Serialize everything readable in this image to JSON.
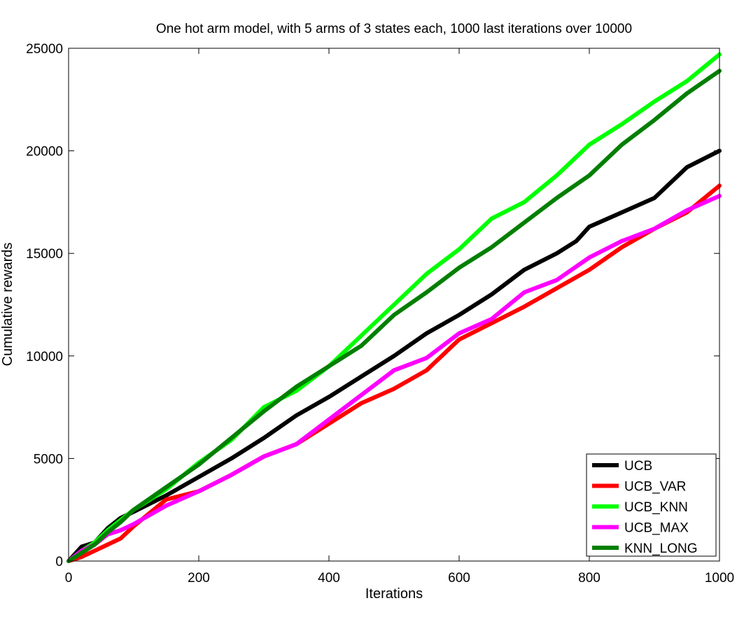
{
  "chart_data": {
    "type": "line",
    "title": "One hot arm model, with 5 arms of 3 states each, 1000 last iterations over 10000",
    "xlabel": "Iterations",
    "ylabel": "Cumulative rewards",
    "xlim": [
      0,
      1000
    ],
    "ylim": [
      0,
      25000
    ],
    "xticks": [
      0,
      200,
      400,
      600,
      800,
      1000
    ],
    "yticks": [
      0,
      5000,
      10000,
      15000,
      20000,
      25000
    ],
    "grid": false,
    "legend_position": "bottom-right",
    "series": [
      {
        "name": "UCB",
        "color": "#000000",
        "x": [
          0,
          20,
          40,
          60,
          80,
          100,
          150,
          200,
          250,
          300,
          350,
          400,
          450,
          500,
          550,
          600,
          650,
          700,
          750,
          780,
          800,
          850,
          900,
          950,
          1000
        ],
        "y": [
          0,
          700,
          900,
          1600,
          2100,
          2400,
          3200,
          4100,
          5000,
          6000,
          7100,
          8000,
          9000,
          10000,
          11100,
          12000,
          13000,
          14200,
          15000,
          15600,
          16300,
          17000,
          17700,
          19200,
          20000
        ]
      },
      {
        "name": "UCB_VAR",
        "color": "#ff0000",
        "x": [
          0,
          20,
          40,
          60,
          80,
          100,
          150,
          200,
          250,
          300,
          350,
          400,
          450,
          500,
          550,
          600,
          650,
          700,
          750,
          800,
          850,
          900,
          950,
          1000
        ],
        "y": [
          0,
          200,
          500,
          800,
          1100,
          1700,
          3000,
          3400,
          4200,
          5100,
          5700,
          6700,
          7700,
          8400,
          9300,
          10800,
          11600,
          12400,
          13300,
          14200,
          15300,
          16200,
          17000,
          18300
        ]
      },
      {
        "name": "UCB_KNN",
        "color": "#00ff00",
        "x": [
          0,
          20,
          40,
          60,
          80,
          100,
          150,
          200,
          250,
          300,
          350,
          400,
          450,
          500,
          550,
          600,
          650,
          700,
          750,
          800,
          850,
          900,
          950,
          1000
        ],
        "y": [
          0,
          500,
          900,
          1500,
          2000,
          2500,
          3500,
          4800,
          5900,
          7500,
          8300,
          9500,
          11000,
          12500,
          14000,
          15200,
          16700,
          17500,
          18800,
          20300,
          21300,
          22400,
          23400,
          24700
        ]
      },
      {
        "name": "UCB_MAX",
        "color": "#ff00ff",
        "x": [
          0,
          20,
          40,
          60,
          80,
          100,
          150,
          200,
          250,
          300,
          350,
          400,
          450,
          500,
          550,
          600,
          650,
          700,
          750,
          800,
          850,
          900,
          950,
          1000
        ],
        "y": [
          0,
          500,
          800,
          1300,
          1500,
          1800,
          2700,
          3400,
          4200,
          5100,
          5700,
          6900,
          8100,
          9300,
          9900,
          11100,
          11800,
          13100,
          13700,
          14800,
          15600,
          16200,
          17100,
          17800
        ]
      },
      {
        "name": "KNN_LONG",
        "color": "#007f00",
        "x": [
          0,
          20,
          40,
          60,
          80,
          100,
          150,
          200,
          250,
          300,
          350,
          400,
          450,
          500,
          550,
          600,
          650,
          700,
          750,
          800,
          850,
          900,
          950,
          1000
        ],
        "y": [
          0,
          400,
          800,
          1400,
          1900,
          2500,
          3600,
          4700,
          6000,
          7300,
          8500,
          9500,
          10500,
          12000,
          13100,
          14300,
          15300,
          16500,
          17700,
          18800,
          20300,
          21500,
          22800,
          23900
        ]
      }
    ]
  }
}
